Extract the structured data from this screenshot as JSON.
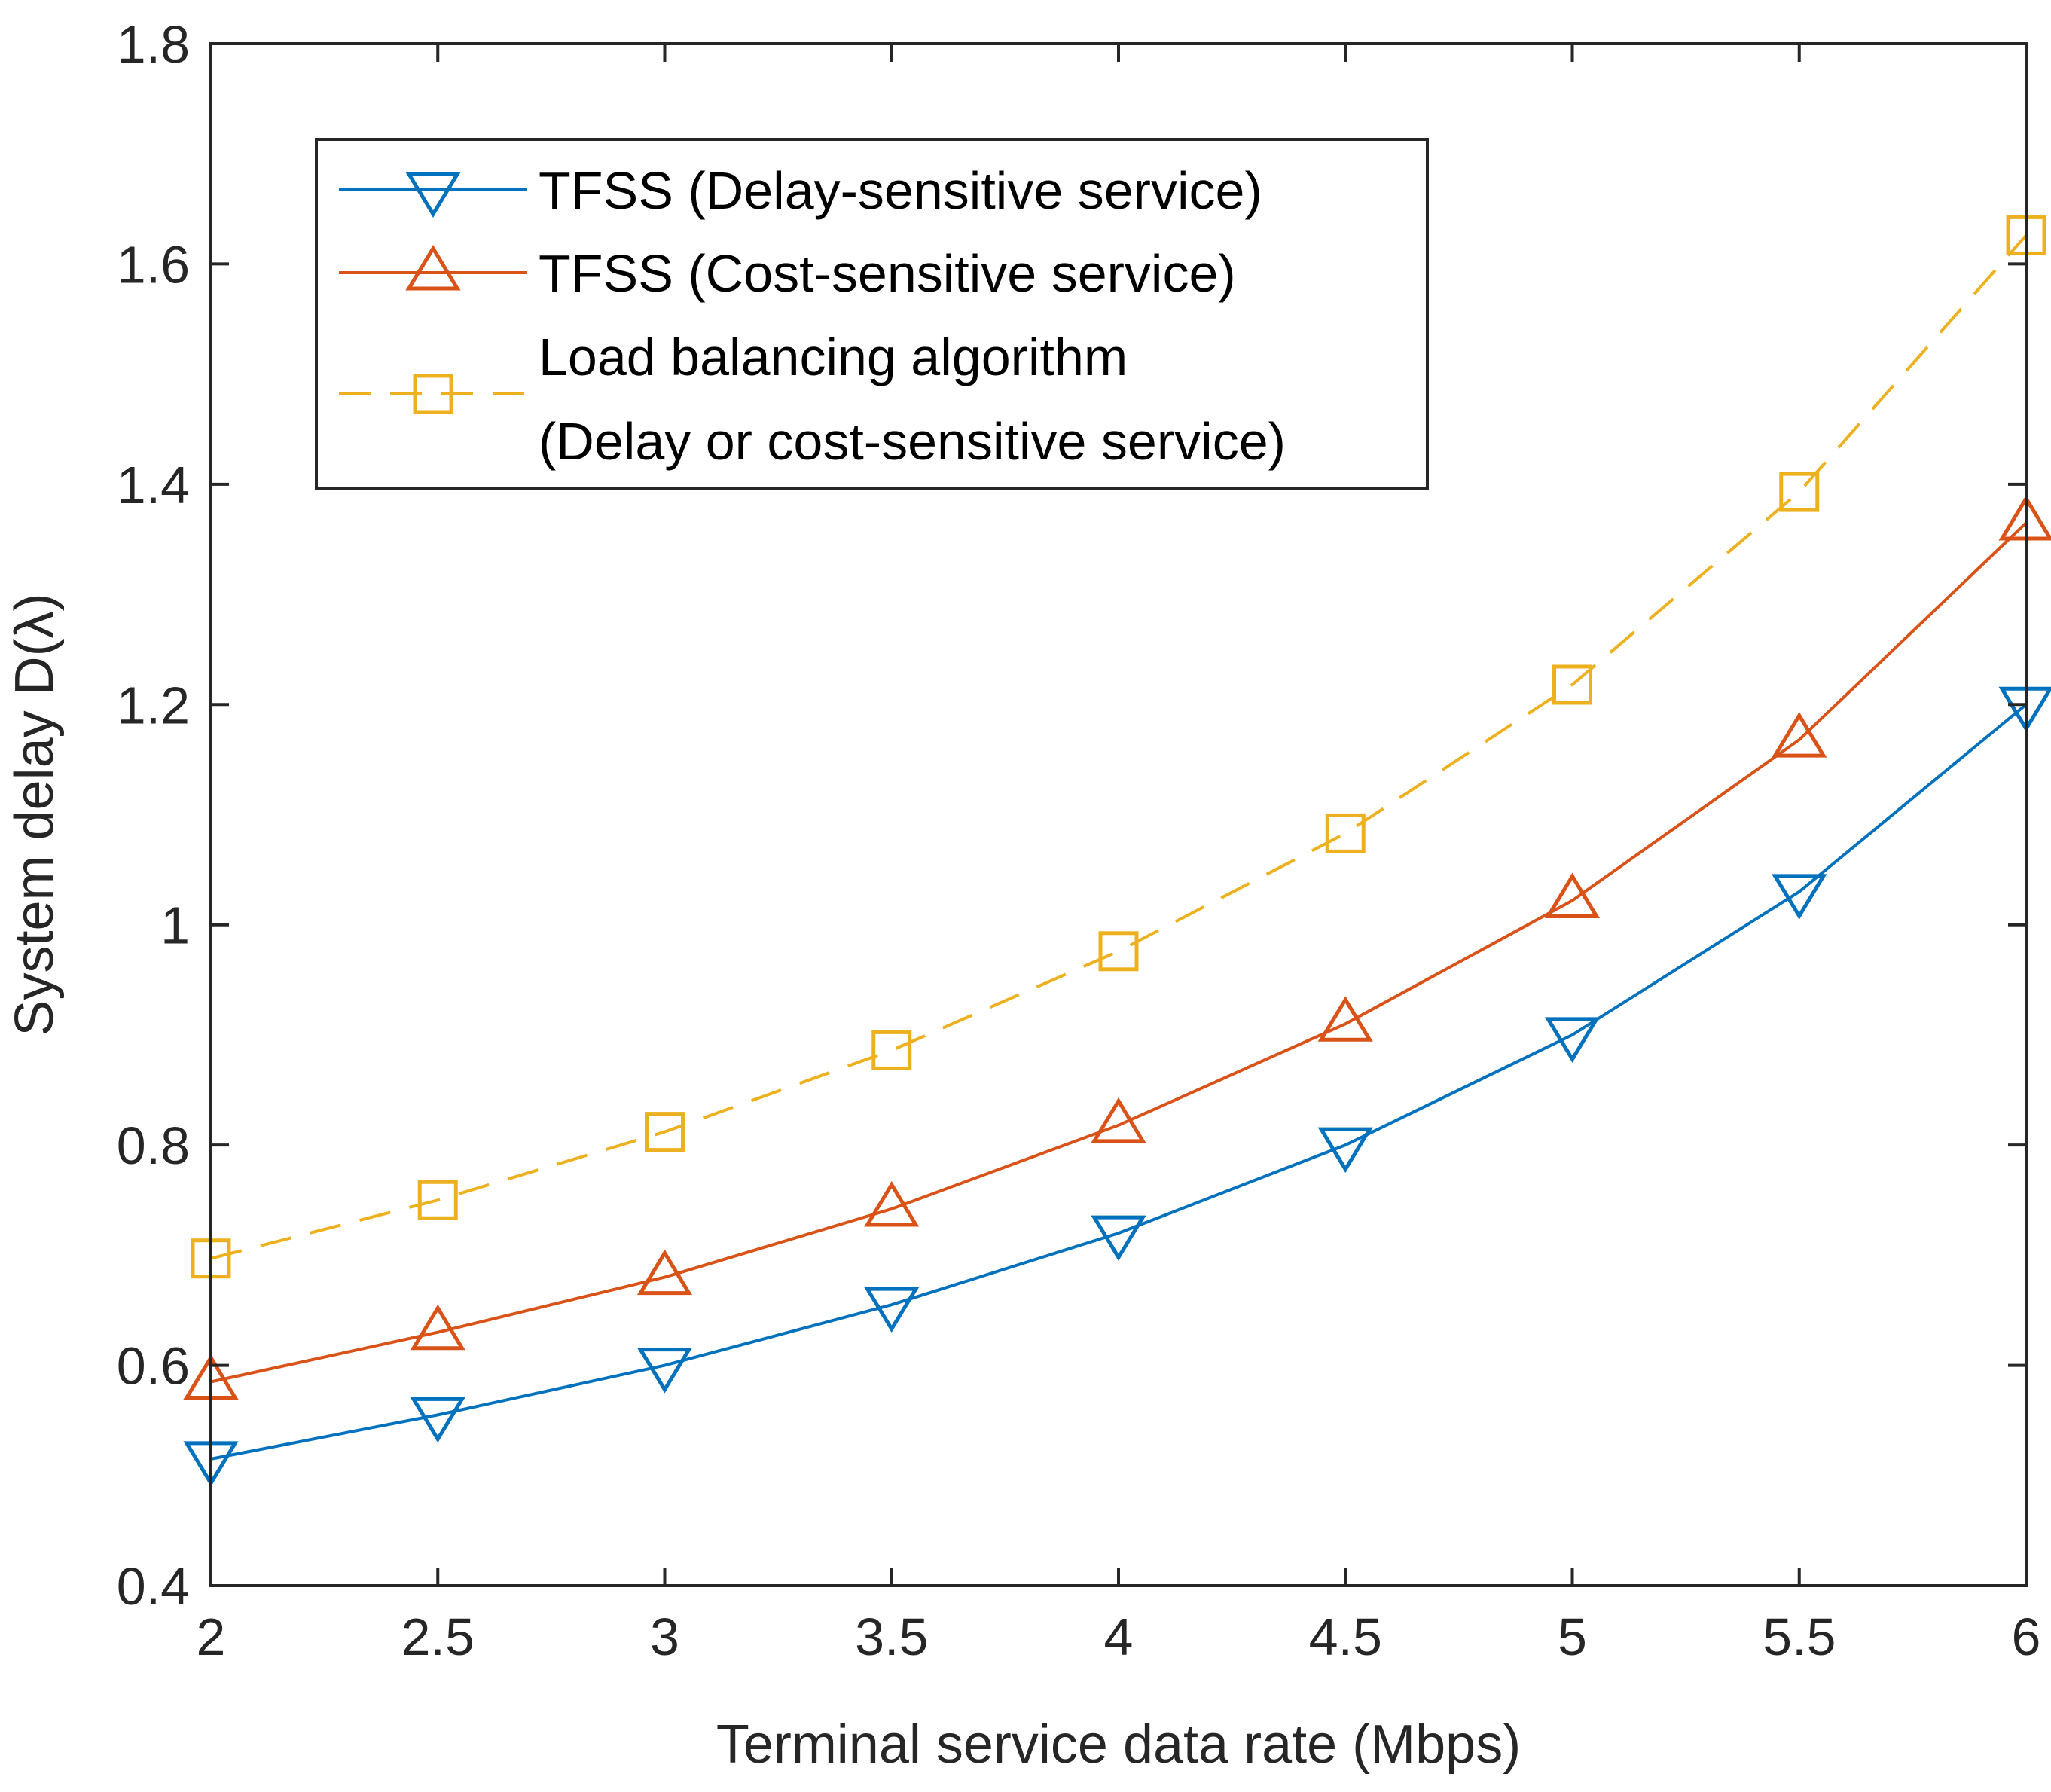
{
  "chart_data": {
    "type": "line",
    "title": "",
    "xlabel": "Terminal service data rate (Mbps)",
    "ylabel": "System delay D(λ)",
    "xlim": [
      2,
      6
    ],
    "ylim": [
      0.4,
      1.8
    ],
    "xticks": [
      2,
      2.5,
      3,
      3.5,
      4,
      4.5,
      5,
      5.5,
      6
    ],
    "xtick_labels": [
      "2",
      "2.5",
      "3",
      "3.5",
      "4",
      "4.5",
      "5",
      "5.5",
      "6"
    ],
    "yticks": [
      0.4,
      0.6,
      0.8,
      1.0,
      1.2,
      1.4,
      1.6,
      1.8
    ],
    "ytick_labels": [
      "0.4",
      "0.6",
      "0.8",
      "1",
      "1.2",
      "1.4",
      "1.6",
      "1.8"
    ],
    "grid": false,
    "legend_position": "top-left",
    "x": [
      2,
      2.5,
      3,
      3.5,
      4,
      4.5,
      5,
      5.5,
      6
    ],
    "series": [
      {
        "name": "TFSS (Delay-sensitive service)",
        "legend_lines": [
          "TFSS (Delay-sensitive service)"
        ],
        "color": "#0072BD",
        "marker": "triangle-down",
        "line_style": "solid",
        "values": [
          0.515,
          0.555,
          0.6,
          0.655,
          0.72,
          0.8,
          0.9,
          1.03,
          1.2
        ]
      },
      {
        "name": "TFSS (Cost-sensitive service)",
        "legend_lines": [
          "TFSS (Cost-sensitive service)"
        ],
        "color": "#D95319",
        "marker": "triangle-up",
        "line_style": "solid",
        "values": [
          0.585,
          0.63,
          0.68,
          0.742,
          0.818,
          0.91,
          1.022,
          1.168,
          1.365
        ]
      },
      {
        "name": "Load balancing algorithm (Delay or cost-sensitive service)",
        "legend_lines": [
          "Load balancing algorithm",
          "(Delay or cost-sensitive service)"
        ],
        "color": "#EDB120",
        "marker": "square",
        "line_style": "dashed",
        "values": [
          0.697,
          0.75,
          0.812,
          0.886,
          0.976,
          1.083,
          1.218,
          1.393,
          1.626
        ]
      }
    ]
  }
}
